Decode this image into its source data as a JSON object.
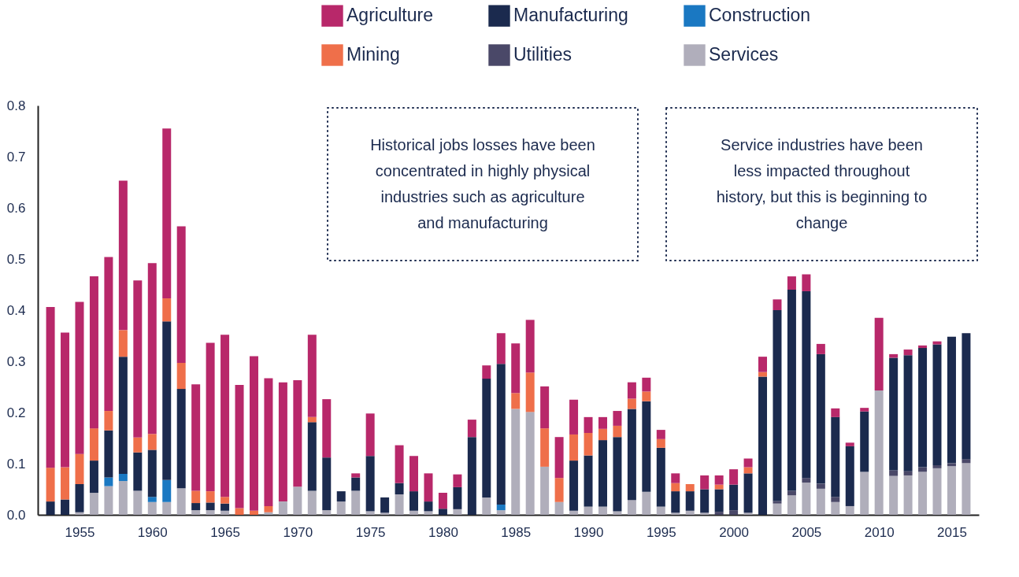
{
  "chart_data": {
    "type": "bar",
    "stacked": true,
    "x": [
      1953,
      1954,
      1955,
      1956,
      1957,
      1958,
      1959,
      1960,
      1961,
      1962,
      1963,
      1964,
      1965,
      1966,
      1967,
      1968,
      1969,
      1970,
      1971,
      1972,
      1973,
      1974,
      1975,
      1976,
      1977,
      1978,
      1979,
      1980,
      1981,
      1982,
      1983,
      1984,
      1985,
      1986,
      1987,
      1988,
      1989,
      1990,
      1991,
      1992,
      1993,
      1994,
      1995,
      1996,
      1997,
      1998,
      1999,
      2000,
      2001,
      2002,
      2003,
      2004,
      2005,
      2006,
      2007,
      2008,
      2009,
      2010,
      2011,
      2012,
      2013,
      2014,
      2015,
      2016
    ],
    "xlim": [
      1952.4,
      2016.6
    ],
    "xticks": [
      1955,
      1960,
      1965,
      1970,
      1975,
      1980,
      1985,
      1990,
      1995,
      2000,
      2005,
      2010,
      2015
    ],
    "ylim": [
      0,
      0.8
    ],
    "yticks": [
      {
        "value": 0,
        "label": "0.0"
      },
      0.1,
      0.2,
      0.3,
      0.4,
      0.5,
      0.6,
      0.7,
      0.8
    ],
    "grid": false,
    "legend": "top right",
    "series": [
      {
        "name": "Services",
        "color": "#b0aebb",
        "values": [
          0,
          0,
          0.005,
          0.043,
          0.056,
          0.066,
          0.047,
          0.025,
          0.025,
          0.052,
          0.009,
          0.009,
          0.008,
          0,
          0,
          0.005,
          0.026,
          0.055,
          0.047,
          0.009,
          0.026,
          0.047,
          0.007,
          0.004,
          0.04,
          0.008,
          0.007,
          0,
          0.011,
          0,
          0.034,
          0.009,
          0.207,
          0.201,
          0.094,
          0.025,
          0.008,
          0.016,
          0.016,
          0.007,
          0.029,
          0.045,
          0.016,
          0.004,
          0.008,
          0.004,
          0,
          0,
          0.004,
          0,
          0.022,
          0.038,
          0.063,
          0.051,
          0.025,
          0.017,
          0.084,
          0.243,
          0.076,
          0.077,
          0.084,
          0.091,
          0.095,
          0.101
        ]
      },
      {
        "name": "Utilities",
        "color": "#4a4868",
        "values": [
          0,
          0,
          0,
          0,
          0,
          0,
          0,
          0,
          0,
          0,
          0,
          0,
          0,
          0,
          0,
          0,
          0,
          0,
          0,
          0,
          0,
          0,
          0,
          0,
          0,
          0,
          0,
          0,
          0,
          0,
          0,
          0,
          0,
          0,
          0,
          0,
          0,
          0,
          0,
          0,
          0,
          0,
          0,
          0,
          0,
          0,
          0.006,
          0.009,
          0,
          0,
          0.005,
          0.009,
          0.009,
          0.01,
          0.01,
          0,
          0,
          0,
          0.011,
          0.008,
          0.009,
          0.006,
          0.006,
          0.008
        ]
      },
      {
        "name": "Construction",
        "color": "#1a78c2",
        "values": [
          0,
          0,
          0,
          0,
          0.017,
          0.014,
          0,
          0.01,
          0.043,
          0,
          0,
          0,
          0,
          0,
          0,
          0,
          0,
          0,
          0,
          0,
          0,
          0,
          0,
          0,
          0,
          0,
          0,
          0,
          0,
          0,
          0,
          0.011,
          0,
          0,
          0,
          0,
          0,
          0,
          0,
          0,
          0,
          0,
          0,
          0,
          0,
          0,
          0,
          0,
          0,
          0,
          0,
          0,
          0,
          0,
          0,
          0,
          0,
          0,
          0,
          0,
          0,
          0,
          0,
          0
        ]
      },
      {
        "name": "Manufacturing",
        "color": "#1b2a4e",
        "values": [
          0.026,
          0.03,
          0.055,
          0.063,
          0.092,
          0.229,
          0.075,
          0.092,
          0.31,
          0.194,
          0.014,
          0.015,
          0.014,
          0,
          0,
          0,
          0,
          0,
          0.134,
          0.103,
          0.02,
          0.026,
          0.108,
          0.03,
          0.022,
          0.038,
          0.019,
          0.012,
          0.043,
          0.152,
          0.232,
          0.275,
          0,
          0,
          0,
          0,
          0.098,
          0.1,
          0.13,
          0.145,
          0.178,
          0.177,
          0.115,
          0.042,
          0.038,
          0.046,
          0.044,
          0.05,
          0.077,
          0.27,
          0.373,
          0.393,
          0.365,
          0.253,
          0.156,
          0.117,
          0.118,
          0,
          0.22,
          0.227,
          0.233,
          0.236,
          0.247,
          0.246
        ]
      },
      {
        "name": "Mining",
        "color": "#ef6f4a",
        "values": [
          0.066,
          0.063,
          0.059,
          0.063,
          0.038,
          0.052,
          0.029,
          0.031,
          0.045,
          0.051,
          0.024,
          0.022,
          0.013,
          0.013,
          0.008,
          0.012,
          0,
          0,
          0.01,
          0,
          0,
          0,
          0,
          0,
          0,
          0,
          0,
          0,
          0,
          0,
          0,
          0,
          0.031,
          0.077,
          0.075,
          0.047,
          0.051,
          0.044,
          0.022,
          0.022,
          0.02,
          0.019,
          0.017,
          0.016,
          0.014,
          0,
          0.009,
          0,
          0.012,
          0.009,
          0,
          0,
          0,
          0,
          0,
          0,
          0,
          0,
          0,
          0,
          0,
          0,
          0,
          0
        ]
      },
      {
        "name": "Agriculture",
        "color": "#b8286a",
        "values": [
          0.314,
          0.263,
          0.297,
          0.297,
          0.301,
          0.292,
          0.307,
          0.334,
          0.332,
          0.267,
          0.208,
          0.29,
          0.317,
          0.241,
          0.302,
          0.25,
          0.233,
          0.208,
          0.161,
          0.114,
          0,
          0.008,
          0.083,
          0,
          0.074,
          0.069,
          0.055,
          0.031,
          0.025,
          0.034,
          0.026,
          0.06,
          0.097,
          0.103,
          0.082,
          0.08,
          0.068,
          0.031,
          0.023,
          0.029,
          0.032,
          0.027,
          0.018,
          0.019,
          0,
          0.027,
          0.018,
          0.03,
          0.017,
          0.03,
          0.021,
          0.026,
          0.033,
          0.02,
          0.017,
          0.007,
          0.007,
          0.142,
          0.007,
          0.011,
          0.005,
          0.006,
          0,
          0
        ]
      }
    ],
    "annotations": [
      "Historical jobs losses have been\nconcentrated in highly physical\nindustries such as agriculture\nand manufacturing",
      "Service industries have been\nless impacted throughout\nhistory, but this is beginning to\nchange"
    ]
  }
}
